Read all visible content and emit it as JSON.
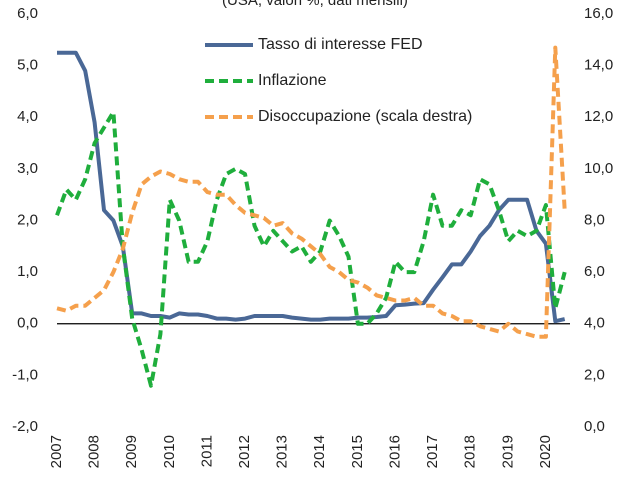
{
  "chart_data": {
    "type": "line",
    "subtitle": "(USA, valori %, dati mensili)",
    "x": [
      2007,
      2007.25,
      2007.5,
      2007.75,
      2008,
      2008.25,
      2008.5,
      2008.75,
      2009,
      2009.25,
      2009.5,
      2009.75,
      2010,
      2010.25,
      2010.5,
      2010.75,
      2011,
      2011.25,
      2011.5,
      2011.75,
      2012,
      2012.25,
      2012.5,
      2012.75,
      2013,
      2013.25,
      2013.5,
      2013.75,
      2014,
      2014.25,
      2014.5,
      2014.75,
      2015,
      2015.25,
      2015.5,
      2015.75,
      2016,
      2016.25,
      2016.5,
      2016.75,
      2017,
      2017.25,
      2017.5,
      2017.75,
      2018,
      2018.25,
      2018.5,
      2018.75,
      2019,
      2019.25,
      2019.5,
      2019.75,
      2020,
      2020.25,
      2020.5
    ],
    "xlim": [
      2007,
      2020.64
    ],
    "xticks": [
      2007,
      2008,
      2009,
      2010,
      2011,
      2012,
      2013,
      2014,
      2015,
      2016,
      2017,
      2018,
      2019,
      2020
    ],
    "ylim": [
      -2,
      6
    ],
    "yticks": [
      {
        "value": -2,
        "label": "-2,0"
      },
      {
        "value": -1,
        "label": "-1,0"
      },
      {
        "value": 0,
        "label": "0,0"
      },
      {
        "value": 1,
        "label": "1,0"
      },
      {
        "value": 2,
        "label": "2,0"
      },
      {
        "value": 3,
        "label": "3,0"
      },
      {
        "value": 4,
        "label": "4,0"
      },
      {
        "value": 5,
        "label": "5,0"
      },
      {
        "value": 6,
        "label": "6,0"
      }
    ],
    "y2lim": [
      0,
      16
    ],
    "y2ticks": [
      {
        "value": 0,
        "label": "0,0"
      },
      {
        "value": 2,
        "label": "2,0"
      },
      {
        "value": 4,
        "label": "4,0"
      },
      {
        "value": 6,
        "label": "6,0"
      },
      {
        "value": 8,
        "label": "8,0"
      },
      {
        "value": 10,
        "label": "10,0"
      },
      {
        "value": 12,
        "label": "12,0"
      },
      {
        "value": 14,
        "label": "14,0"
      },
      {
        "value": 16,
        "label": "16,0"
      }
    ],
    "series": [
      {
        "name": "Tasso di interesse FED",
        "color": "#4a6896",
        "dash": false,
        "values": [
          5.25,
          5.25,
          5.25,
          4.9,
          3.9,
          2.2,
          2.0,
          1.5,
          0.2,
          0.2,
          0.15,
          0.15,
          0.12,
          0.2,
          0.18,
          0.18,
          0.15,
          0.1,
          0.1,
          0.08,
          0.1,
          0.15,
          0.15,
          0.15,
          0.15,
          0.12,
          0.1,
          0.08,
          0.08,
          0.1,
          0.1,
          0.1,
          0.12,
          0.12,
          0.13,
          0.15,
          0.36,
          0.37,
          0.39,
          0.4,
          0.66,
          0.9,
          1.15,
          1.15,
          1.4,
          1.7,
          1.9,
          2.2,
          2.4,
          2.4,
          2.4,
          1.8,
          1.55,
          0.05,
          0.09
        ]
      },
      {
        "name": "Inflazione",
        "color": "#1fae3c",
        "dash": true,
        "values": [
          2.1,
          2.6,
          2.4,
          2.8,
          3.5,
          3.8,
          4.1,
          1.5,
          0.1,
          -0.5,
          -1.2,
          -0.2,
          2.4,
          2.0,
          1.2,
          1.2,
          1.6,
          2.4,
          2.9,
          3.0,
          2.9,
          1.9,
          1.5,
          1.8,
          1.6,
          1.4,
          1.5,
          1.2,
          1.4,
          2.0,
          1.7,
          1.3,
          0.0,
          0.0,
          0.2,
          0.5,
          1.2,
          1.0,
          1.0,
          1.6,
          2.5,
          1.9,
          1.9,
          2.2,
          2.1,
          2.8,
          2.7,
          2.2,
          1.6,
          1.8,
          1.7,
          1.8,
          2.3,
          0.3,
          1.0
        ]
      },
      {
        "name": "Disoccupazione (scala destra)",
        "color": "#f5a04c",
        "dash": true,
        "axis": "y2",
        "values": [
          4.6,
          4.5,
          4.7,
          4.7,
          5.0,
          5.3,
          6.0,
          6.9,
          8.3,
          9.4,
          9.7,
          9.9,
          9.8,
          9.6,
          9.5,
          9.5,
          9.1,
          9.0,
          9.0,
          8.6,
          8.3,
          8.2,
          8.1,
          7.8,
          7.9,
          7.5,
          7.3,
          7.0,
          6.7,
          6.2,
          6.0,
          5.7,
          5.6,
          5.4,
          5.1,
          5.0,
          4.9,
          4.9,
          5.0,
          4.7,
          4.7,
          4.4,
          4.3,
          4.1,
          4.1,
          3.9,
          3.8,
          3.7,
          4.0,
          3.7,
          3.6,
          3.5,
          3.5,
          14.7,
          8.4
        ]
      }
    ]
  }
}
